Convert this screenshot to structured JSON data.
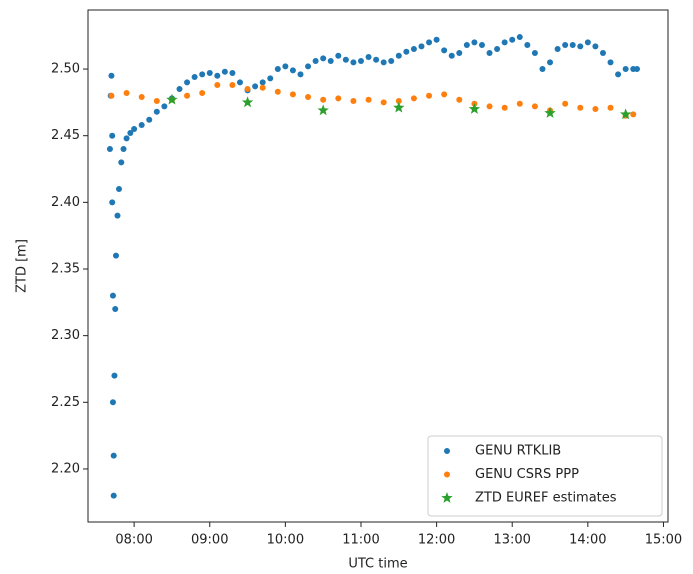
{
  "chart_data": {
    "type": "scatter",
    "x_label": "UTC time",
    "y_label": "ZTD [m]",
    "xlim": [
      7.39,
      15.06
    ],
    "ylim": [
      2.1602,
      2.5443
    ],
    "xticks": [
      {
        "value": 8,
        "label": "08:00"
      },
      {
        "value": 9,
        "label": "09:00"
      },
      {
        "value": 10,
        "label": "10:00"
      },
      {
        "value": 11,
        "label": "11:00"
      },
      {
        "value": 12,
        "label": "12:00"
      },
      {
        "value": 13,
        "label": "13:00"
      },
      {
        "value": 14,
        "label": "14:00"
      },
      {
        "value": 15,
        "label": "15:00"
      }
    ],
    "yticks": [
      {
        "value": 2.2,
        "label": "2.20"
      },
      2.25,
      {
        "value": 2.3,
        "label": "2.30"
      },
      2.35,
      {
        "value": 2.4,
        "label": "2.40"
      },
      2.45,
      {
        "value": 2.5,
        "label": "2.50"
      }
    ],
    "legend": "lower right",
    "series": [
      {
        "name": "GENU RTKLIB",
        "color": "#1f77b4",
        "marker": "circle",
        "x": [
          7.68,
          7.69,
          7.7,
          7.71,
          7.71,
          7.72,
          7.72,
          7.73,
          7.73,
          7.74,
          7.75,
          7.76,
          7.78,
          7.8,
          7.83,
          7.86,
          7.9,
          7.95,
          8.0,
          8.1,
          8.2,
          8.3,
          8.4,
          8.5,
          8.6,
          8.7,
          8.8,
          8.9,
          9.0,
          9.1,
          9.2,
          9.3,
          9.4,
          9.5,
          9.6,
          9.7,
          9.8,
          9.9,
          10.0,
          10.1,
          10.2,
          10.3,
          10.4,
          10.5,
          10.6,
          10.7,
          10.8,
          10.9,
          11.0,
          11.1,
          11.2,
          11.3,
          11.4,
          11.5,
          11.6,
          11.7,
          11.8,
          11.9,
          12.0,
          12.1,
          12.2,
          12.3,
          12.4,
          12.5,
          12.6,
          12.7,
          12.8,
          12.9,
          13.0,
          13.1,
          13.2,
          13.3,
          13.4,
          13.5,
          13.6,
          13.7,
          13.8,
          13.9,
          14.0,
          14.1,
          14.2,
          14.3,
          14.4,
          14.5,
          14.6,
          14.65
        ],
        "values": [
          2.44,
          2.48,
          2.495,
          2.45,
          2.4,
          2.33,
          2.25,
          2.18,
          2.21,
          2.27,
          2.32,
          2.36,
          2.39,
          2.41,
          2.43,
          2.44,
          2.448,
          2.452,
          2.455,
          2.458,
          2.462,
          2.468,
          2.472,
          2.478,
          2.485,
          2.49,
          2.494,
          2.496,
          2.497,
          2.495,
          2.498,
          2.497,
          2.49,
          2.484,
          2.487,
          2.49,
          2.493,
          2.5,
          2.502,
          2.499,
          2.496,
          2.502,
          2.506,
          2.508,
          2.506,
          2.51,
          2.507,
          2.505,
          2.506,
          2.509,
          2.507,
          2.505,
          2.506,
          2.51,
          2.513,
          2.515,
          2.517,
          2.52,
          2.522,
          2.514,
          2.51,
          2.512,
          2.518,
          2.52,
          2.518,
          2.512,
          2.515,
          2.52,
          2.522,
          2.524,
          2.518,
          2.512,
          2.5,
          2.505,
          2.515,
          2.518,
          2.518,
          2.517,
          2.52,
          2.517,
          2.512,
          2.505,
          2.496,
          2.5,
          2.5,
          2.5
        ]
      },
      {
        "name": "GENU CSRS PPP",
        "color": "#ff7f0e",
        "marker": "circle",
        "x": [
          7.7,
          7.9,
          8.1,
          8.3,
          8.5,
          8.7,
          8.9,
          9.1,
          9.3,
          9.5,
          9.7,
          9.9,
          10.1,
          10.3,
          10.5,
          10.7,
          10.9,
          11.1,
          11.3,
          11.5,
          11.7,
          11.9,
          12.1,
          12.3,
          12.5,
          12.7,
          12.9,
          13.1,
          13.3,
          13.5,
          13.7,
          13.9,
          14.1,
          14.3,
          14.5,
          14.6
        ],
        "values": [
          2.48,
          2.482,
          2.479,
          2.476,
          2.477,
          2.48,
          2.482,
          2.488,
          2.488,
          2.485,
          2.486,
          2.483,
          2.481,
          2.479,
          2.477,
          2.478,
          2.476,
          2.477,
          2.475,
          2.476,
          2.478,
          2.48,
          2.481,
          2.477,
          2.474,
          2.472,
          2.471,
          2.474,
          2.472,
          2.469,
          2.474,
          2.471,
          2.47,
          2.471,
          2.465,
          2.466
        ]
      },
      {
        "name": "ZTD EUREF estimates",
        "color": "#2ca02c",
        "marker": "star",
        "x": [
          8.5,
          9.5,
          10.5,
          11.5,
          12.5,
          13.5,
          14.5
        ],
        "values": [
          2.477,
          2.475,
          2.469,
          2.471,
          2.47,
          2.467,
          2.466
        ]
      }
    ]
  }
}
